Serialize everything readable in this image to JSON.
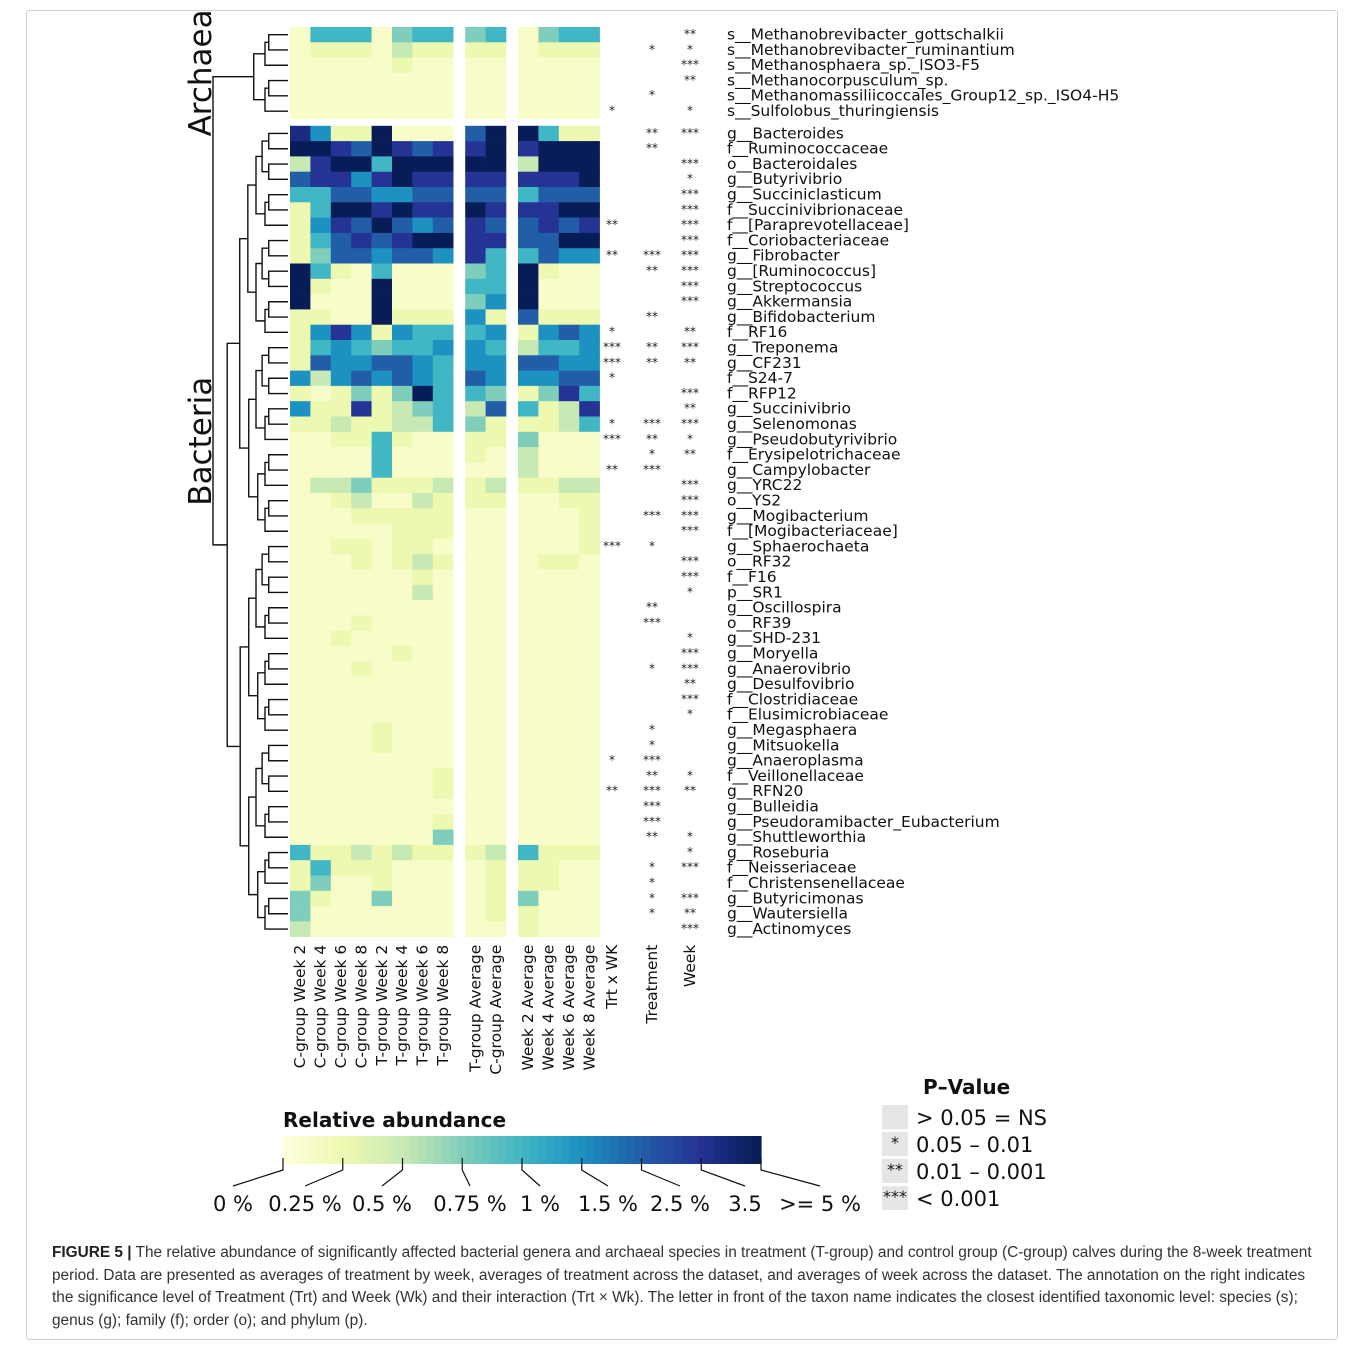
{
  "caption": {
    "label": "FIGURE 5 |",
    "text": "The relative abundance of significantly affected bacterial genera and archaeal species in treatment (T-group) and control group (C-group) calves during the 8-week treatment period. Data are presented as averages of treatment by week, averages of treatment across the dataset, and averages of week across the dataset. The annotation on the right indicates the significance level of Treatment (Trt) and Week (Wk) and their interaction (Trt × Wk). The letter in front of the taxon name indicates the closest identified taxonomic level: species (s); genus (g); family (f); order (o); and phylum (p)."
  },
  "chart_data": {
    "type": "heatmap",
    "groups": [
      "Archaea",
      "Bacteria"
    ],
    "group_sizes": [
      6,
      53
    ],
    "columns": [
      "C-group Week 2",
      "C-group Week 4",
      "C-group Week 6",
      "C-group Week 8",
      "T-group Week 2",
      "T-group Week 4",
      "T-group Week 6",
      "T-group Week 8",
      "T-group Average",
      "C-group Average",
      "Week 2 Average",
      "Week 4 Average",
      "Week 6 Average",
      "Week 8 Average"
    ],
    "column_blocks": [
      8,
      2,
      4
    ],
    "sig_columns": [
      "Trt x WK",
      "Treatment",
      "Week"
    ],
    "rows": [
      "s__Methanobrevibacter_gottschalkii",
      "s__Methanobrevibacter_ruminantium",
      "s__Methanosphaera_sp._ISO3-F5",
      "s__Methanocorpusculum_sp.",
      "s__Methanomassiliicoccales_Group12_sp._ISO4-H5",
      "s__Sulfolobus_thuringiensis",
      "g__Bacteroides",
      "f__Ruminococcaceae",
      "o__Bacteroidales",
      "g__Butyrivibrio",
      "g__Succiniclasticum",
      "f__Succinivibrionaceae",
      "f__[Paraprevotellaceae]",
      "f__Coriobacteriaceae",
      "g__Fibrobacter",
      "g__[Ruminococcus]",
      "g__Streptococcus",
      "g__Akkermansia",
      "g__Bifidobacterium",
      "f__RF16",
      "g__Treponema",
      "g__CF231",
      "f__S24-7",
      "f__RFP12",
      "g__Succinivibrio",
      "g__Selenomonas",
      "g__Pseudobutyrivibrio",
      "f__Erysipelotrichaceae",
      "g__Campylobacter",
      "g__YRC22",
      "o__YS2",
      "g__Mogibacterium",
      "f__[Mogibacteriaceae]",
      "g__Sphaerochaeta",
      "o__RF32",
      "f__F16",
      "p__SR1",
      "g__Oscillospira",
      "o__RF39",
      "g__SHD-231",
      "g__Moryella",
      "g__Anaerovibrio",
      "g__Desulfovibrio",
      "f__Clostridiaceae",
      "f__Elusimicrobiaceae",
      "g__Megasphaera",
      "g__Mitsuokella",
      "g__Anaeroplasma",
      "f__Veillonellaceae",
      "g__RFN20",
      "g__Bulleidia",
      "g__Pseudoramibacter_Eubacterium",
      "g__Shuttleworthia",
      "g__Roseburia",
      "f__Neisseriaceae",
      "f__Christensenellaceae",
      "g__Butyricimonas",
      "g__Wautersiella",
      "g__Actinomyces"
    ],
    "values": [
      [
        0.1,
        1.0,
        1.0,
        1.0,
        0.1,
        0.75,
        1.0,
        1.0,
        0.75,
        1.0,
        0.1,
        0.75,
        1.0,
        1.0
      ],
      [
        0.1,
        0.25,
        0.25,
        0.25,
        0.1,
        0.5,
        0.25,
        0.25,
        0.25,
        0.25,
        0.1,
        0.25,
        0.25,
        0.25
      ],
      [
        0.1,
        0.1,
        0.1,
        0.1,
        0.1,
        0.25,
        0.1,
        0.1,
        0.1,
        0.1,
        0.1,
        0.1,
        0.1,
        0.1
      ],
      [
        0.1,
        0.1,
        0.1,
        0.1,
        0.1,
        0.1,
        0.1,
        0.1,
        0.1,
        0.1,
        0.1,
        0.1,
        0.1,
        0.1
      ],
      [
        0.1,
        0.1,
        0.1,
        0.1,
        0.1,
        0.1,
        0.1,
        0.1,
        0.1,
        0.1,
        0.1,
        0.1,
        0.1,
        0.1
      ],
      [
        0.1,
        0.1,
        0.1,
        0.1,
        0.1,
        0.1,
        0.1,
        0.1,
        0.1,
        0.1,
        0.1,
        0.1,
        0.1,
        0.1
      ],
      [
        4.0,
        1.5,
        0.25,
        0.25,
        5,
        0.1,
        0.1,
        0.1,
        2.5,
        5,
        5,
        1.0,
        0.25,
        0.25
      ],
      [
        5,
        5,
        3.5,
        2.5,
        5,
        3.5,
        2.5,
        3.5,
        3.5,
        5,
        3.5,
        5,
        5,
        5
      ],
      [
        0.5,
        3.5,
        5,
        5,
        1.0,
        5,
        5,
        5,
        5,
        5,
        0.5,
        5,
        5,
        5
      ],
      [
        2.5,
        3.5,
        3.5,
        1.5,
        3.5,
        5,
        3.5,
        3.5,
        3.5,
        3.5,
        3.5,
        3.5,
        3.5,
        5
      ],
      [
        1.0,
        1.0,
        2.5,
        2.5,
        1.5,
        1.5,
        2.5,
        2.5,
        2.5,
        2.5,
        1.0,
        2.5,
        2.5,
        2.5
      ],
      [
        0.25,
        1.0,
        5,
        5,
        3.5,
        5,
        3.5,
        3.5,
        5,
        3.5,
        3.5,
        3.5,
        5,
        5
      ],
      [
        0.25,
        1.5,
        3.5,
        2.5,
        5,
        2.5,
        1.5,
        2.5,
        3.5,
        2.5,
        2.5,
        3.5,
        2.5,
        3.5
      ],
      [
        0.25,
        1.0,
        2.5,
        3.5,
        2.5,
        3.5,
        5,
        5,
        3.5,
        3.5,
        2.5,
        2.5,
        5,
        5
      ],
      [
        0.25,
        0.75,
        2.5,
        2.5,
        1.5,
        2.5,
        2.5,
        1.5,
        3.5,
        1.0,
        1.0,
        2.5,
        1.5,
        1.5
      ],
      [
        5,
        1.0,
        0.25,
        0.1,
        1.0,
        0.1,
        0.1,
        0.1,
        0.75,
        1.0,
        5,
        0.25,
        0.1,
        0.1
      ],
      [
        5,
        0.25,
        0.1,
        0.1,
        5,
        0.1,
        0.1,
        0.1,
        1.0,
        1.0,
        5,
        0.1,
        0.1,
        0.1
      ],
      [
        5,
        0.1,
        0.1,
        0.1,
        5,
        0.1,
        0.1,
        0.1,
        0.75,
        1.5,
        5,
        0.1,
        0.1,
        0.1
      ],
      [
        0.25,
        0.25,
        0.1,
        0.1,
        5,
        0.25,
        0.25,
        0.25,
        1.5,
        0.25,
        2.5,
        0.25,
        0.25,
        0.25
      ],
      [
        0.25,
        1.5,
        3.5,
        1.5,
        0.25,
        1.5,
        1.0,
        1.0,
        1.0,
        1.5,
        0.25,
        1.5,
        2.5,
        1.5
      ],
      [
        0.25,
        1.0,
        1.5,
        1.0,
        0.75,
        1.0,
        1.0,
        1.5,
        1.5,
        1.0,
        0.5,
        1.0,
        1.0,
        1.5
      ],
      [
        0.25,
        2.5,
        1.5,
        1.5,
        2.5,
        2.5,
        1.5,
        1.0,
        1.5,
        1.5,
        2.5,
        2.5,
        1.5,
        1.5
      ],
      [
        1.5,
        0.5,
        1.5,
        2.5,
        1.5,
        2.5,
        1.5,
        1.0,
        2.5,
        1.5,
        1.5,
        1.5,
        2.5,
        2.5
      ],
      [
        0.25,
        0.1,
        0.25,
        0.75,
        0.25,
        0.75,
        5,
        1.0,
        1.0,
        0.75,
        0.25,
        0.75,
        3.5,
        1.0
      ],
      [
        1.5,
        0.25,
        0.25,
        3.5,
        0.25,
        0.5,
        0.75,
        1.0,
        0.5,
        2.5,
        1.0,
        0.25,
        0.5,
        3.5
      ],
      [
        0.25,
        0.25,
        0.5,
        0.25,
        0.25,
        0.5,
        0.5,
        1.0,
        0.75,
        0.25,
        0.25,
        0.25,
        0.5,
        1.0
      ],
      [
        0.1,
        0.1,
        0.25,
        0.25,
        1.0,
        0.25,
        0.1,
        0.1,
        0.25,
        0.25,
        0.75,
        0.1,
        0.1,
        0.1
      ],
      [
        0.1,
        0.1,
        0.1,
        0.1,
        1.0,
        0.1,
        0.1,
        0.1,
        0.25,
        0.1,
        0.5,
        0.1,
        0.1,
        0.1
      ],
      [
        0.1,
        0.1,
        0.1,
        0.1,
        1.0,
        0.1,
        0.1,
        0.1,
        0.1,
        0.1,
        0.5,
        0.1,
        0.1,
        0.1
      ],
      [
        0.1,
        0.5,
        0.5,
        0.75,
        0.25,
        0.25,
        0.25,
        0.5,
        0.25,
        0.5,
        0.25,
        0.25,
        0.5,
        0.5
      ],
      [
        0.1,
        0.1,
        0.25,
        0.5,
        0.1,
        0.1,
        0.5,
        0.25,
        0.25,
        0.25,
        0.1,
        0.1,
        0.25,
        0.25
      ],
      [
        0.1,
        0.1,
        0.1,
        0.25,
        0.25,
        0.25,
        0.25,
        0.25,
        0.1,
        0.1,
        0.1,
        0.1,
        0.1,
        0.25
      ],
      [
        0.1,
        0.1,
        0.1,
        0.1,
        0.1,
        0.25,
        0.25,
        0.25,
        0.1,
        0.1,
        0.1,
        0.1,
        0.1,
        0.25
      ],
      [
        0.1,
        0.1,
        0.25,
        0.25,
        0.1,
        0.25,
        0.25,
        0.1,
        0.1,
        0.1,
        0.1,
        0.1,
        0.1,
        0.25
      ],
      [
        0.1,
        0.1,
        0.1,
        0.25,
        0.1,
        0.25,
        0.5,
        0.25,
        0.1,
        0.1,
        0.1,
        0.25,
        0.25,
        0.1
      ],
      [
        0.1,
        0.1,
        0.1,
        0.1,
        0.1,
        0.1,
        0.25,
        0.1,
        0.1,
        0.1,
        0.1,
        0.1,
        0.1,
        0.1
      ],
      [
        0.1,
        0.1,
        0.1,
        0.1,
        0.1,
        0.1,
        0.5,
        0.1,
        0.1,
        0.1,
        0.1,
        0.1,
        0.1,
        0.1
      ],
      [
        0.1,
        0.1,
        0.1,
        0.1,
        0.1,
        0.1,
        0.1,
        0.1,
        0.1,
        0.1,
        0.1,
        0.1,
        0.1,
        0.1
      ],
      [
        0.1,
        0.1,
        0.1,
        0.25,
        0.1,
        0.1,
        0.1,
        0.1,
        0.1,
        0.1,
        0.1,
        0.1,
        0.1,
        0.1
      ],
      [
        0.1,
        0.1,
        0.25,
        0.1,
        0.1,
        0.1,
        0.1,
        0.1,
        0.1,
        0.1,
        0.1,
        0.1,
        0.1,
        0.1
      ],
      [
        0.1,
        0.1,
        0.1,
        0.1,
        0.1,
        0.25,
        0.1,
        0.1,
        0.1,
        0.1,
        0.1,
        0.1,
        0.1,
        0.1
      ],
      [
        0.1,
        0.1,
        0.1,
        0.25,
        0.1,
        0.1,
        0.1,
        0.1,
        0.1,
        0.1,
        0.1,
        0.1,
        0.1,
        0.1
      ],
      [
        0.1,
        0.1,
        0.1,
        0.1,
        0.1,
        0.1,
        0.1,
        0.1,
        0.1,
        0.1,
        0.1,
        0.1,
        0.1,
        0.1
      ],
      [
        0.1,
        0.1,
        0.1,
        0.1,
        0.1,
        0.1,
        0.1,
        0.1,
        0.1,
        0.1,
        0.1,
        0.1,
        0.1,
        0.1
      ],
      [
        0.1,
        0.1,
        0.1,
        0.1,
        0.1,
        0.1,
        0.1,
        0.1,
        0.1,
        0.1,
        0.1,
        0.1,
        0.1,
        0.1
      ],
      [
        0.1,
        0.1,
        0.1,
        0.1,
        0.25,
        0.1,
        0.1,
        0.1,
        0.1,
        0.1,
        0.1,
        0.1,
        0.1,
        0.1
      ],
      [
        0.1,
        0.1,
        0.1,
        0.1,
        0.25,
        0.1,
        0.1,
        0.1,
        0.1,
        0.1,
        0.1,
        0.1,
        0.1,
        0.1
      ],
      [
        0.1,
        0.1,
        0.1,
        0.1,
        0.1,
        0.1,
        0.1,
        0.1,
        0.1,
        0.1,
        0.1,
        0.1,
        0.1,
        0.1
      ],
      [
        0.1,
        0.1,
        0.1,
        0.1,
        0.1,
        0.1,
        0.1,
        0.25,
        0.1,
        0.1,
        0.1,
        0.1,
        0.1,
        0.1
      ],
      [
        0.1,
        0.1,
        0.1,
        0.1,
        0.1,
        0.1,
        0.1,
        0.25,
        0.1,
        0.1,
        0.1,
        0.1,
        0.1,
        0.1
      ],
      [
        0.1,
        0.1,
        0.1,
        0.1,
        0.1,
        0.1,
        0.1,
        0.1,
        0.1,
        0.1,
        0.1,
        0.1,
        0.1,
        0.1
      ],
      [
        0.1,
        0.1,
        0.1,
        0.1,
        0.1,
        0.1,
        0.1,
        0.25,
        0.1,
        0.1,
        0.1,
        0.1,
        0.1,
        0.1
      ],
      [
        0.1,
        0.1,
        0.1,
        0.1,
        0.1,
        0.1,
        0.1,
        0.75,
        0.1,
        0.1,
        0.1,
        0.1,
        0.1,
        0.1
      ],
      [
        1.0,
        0.25,
        0.25,
        0.5,
        0.25,
        0.5,
        0.25,
        0.25,
        0.25,
        0.5,
        1.0,
        0.25,
        0.25,
        0.25
      ],
      [
        0.25,
        1.0,
        0.25,
        0.25,
        0.25,
        0.1,
        0.1,
        0.1,
        0.1,
        0.25,
        0.25,
        0.25,
        0.1,
        0.1
      ],
      [
        0.25,
        0.75,
        0.1,
        0.1,
        0.25,
        0.1,
        0.1,
        0.1,
        0.1,
        0.25,
        0.25,
        0.25,
        0.1,
        0.1
      ],
      [
        0.75,
        0.25,
        0.1,
        0.1,
        0.75,
        0.1,
        0.1,
        0.1,
        0.1,
        0.25,
        0.75,
        0.1,
        0.1,
        0.1
      ],
      [
        0.75,
        0.1,
        0.1,
        0.1,
        0.1,
        0.1,
        0.1,
        0.1,
        0.1,
        0.25,
        0.25,
        0.1,
        0.1,
        0.1
      ],
      [
        0.5,
        0.1,
        0.1,
        0.1,
        0.1,
        0.1,
        0.1,
        0.1,
        0.1,
        0.1,
        0.25,
        0.1,
        0.1,
        0.1
      ]
    ],
    "significance": [
      [
        "",
        "",
        "**"
      ],
      [
        "",
        "*",
        "*"
      ],
      [
        "",
        "",
        "***"
      ],
      [
        "",
        "",
        "**"
      ],
      [
        "",
        "*",
        ""
      ],
      [
        "*",
        "",
        "*"
      ],
      [
        "",
        "**",
        "***"
      ],
      [
        "",
        "**",
        ""
      ],
      [
        "",
        "",
        "***"
      ],
      [
        "",
        "",
        "*"
      ],
      [
        "",
        "",
        "***"
      ],
      [
        "",
        "",
        "***"
      ],
      [
        "**",
        "",
        "***"
      ],
      [
        "",
        "",
        "***"
      ],
      [
        "**",
        "***",
        "***"
      ],
      [
        "",
        "**",
        "***"
      ],
      [
        "",
        "",
        "***"
      ],
      [
        "",
        "",
        "***"
      ],
      [
        "",
        "**",
        ""
      ],
      [
        "*",
        "",
        "**"
      ],
      [
        "***",
        "**",
        "***"
      ],
      [
        "***",
        "**",
        "**"
      ],
      [
        "*",
        "",
        ""
      ],
      [
        "",
        "",
        "***"
      ],
      [
        "",
        "",
        "**"
      ],
      [
        "*",
        "***",
        "***"
      ],
      [
        "***",
        "**",
        "*"
      ],
      [
        "",
        "*",
        "**"
      ],
      [
        "**",
        "***",
        ""
      ],
      [
        "",
        "",
        "***"
      ],
      [
        "",
        "",
        "***"
      ],
      [
        "",
        "***",
        "***"
      ],
      [
        "",
        "",
        "***"
      ],
      [
        "***",
        "*",
        ""
      ],
      [
        "",
        "",
        "***"
      ],
      [
        "",
        "",
        "***"
      ],
      [
        "",
        "",
        "*"
      ],
      [
        "",
        "**",
        ""
      ],
      [
        "",
        "***",
        ""
      ],
      [
        "",
        "",
        "*"
      ],
      [
        "",
        "",
        "***"
      ],
      [
        "",
        "*",
        "***"
      ],
      [
        "",
        "",
        "**"
      ],
      [
        "",
        "",
        "***"
      ],
      [
        "",
        "",
        "*"
      ],
      [
        "",
        "*",
        ""
      ],
      [
        "",
        "*",
        ""
      ],
      [
        "*",
        "***",
        ""
      ],
      [
        "",
        "**",
        "*"
      ],
      [
        "**",
        "***",
        "**"
      ],
      [
        "",
        "***",
        ""
      ],
      [
        "",
        "***",
        ""
      ],
      [
        "",
        "**",
        "*"
      ],
      [
        "",
        "",
        "*"
      ],
      [
        "",
        "*",
        "***"
      ],
      [
        "",
        "*",
        ""
      ],
      [
        "",
        "*",
        "***"
      ],
      [
        "",
        "*",
        "**"
      ],
      [
        "",
        "",
        "***"
      ]
    ],
    "colorbar": {
      "title": "Relative abundance",
      "stops": [
        0,
        0.25,
        0.5,
        0.75,
        1,
        1.5,
        2.5,
        3.5,
        5
      ],
      "labels": [
        "0 %",
        "0.25 %",
        "0.5 %",
        "0.75 %",
        "1 %",
        "1.5 %",
        "2.5 %",
        "3.5",
        ">= 5 %"
      ],
      "colors": [
        "#ffffd9",
        "#edf8b1",
        "#c7e9b4",
        "#7fcdbb",
        "#41b6c4",
        "#1d91c0",
        "#225ea8",
        "#253494",
        "#081d58"
      ]
    },
    "pvalue_legend": {
      "title": "P–Value",
      "entries": [
        {
          "symbol": "",
          "label": "> 0.05 = NS"
        },
        {
          "symbol": "*",
          "label": "0.05 – 0.01"
        },
        {
          "symbol": "**",
          "label": "0.01 – 0.001"
        },
        {
          "symbol": "***",
          "label": "< 0.001"
        }
      ]
    }
  }
}
